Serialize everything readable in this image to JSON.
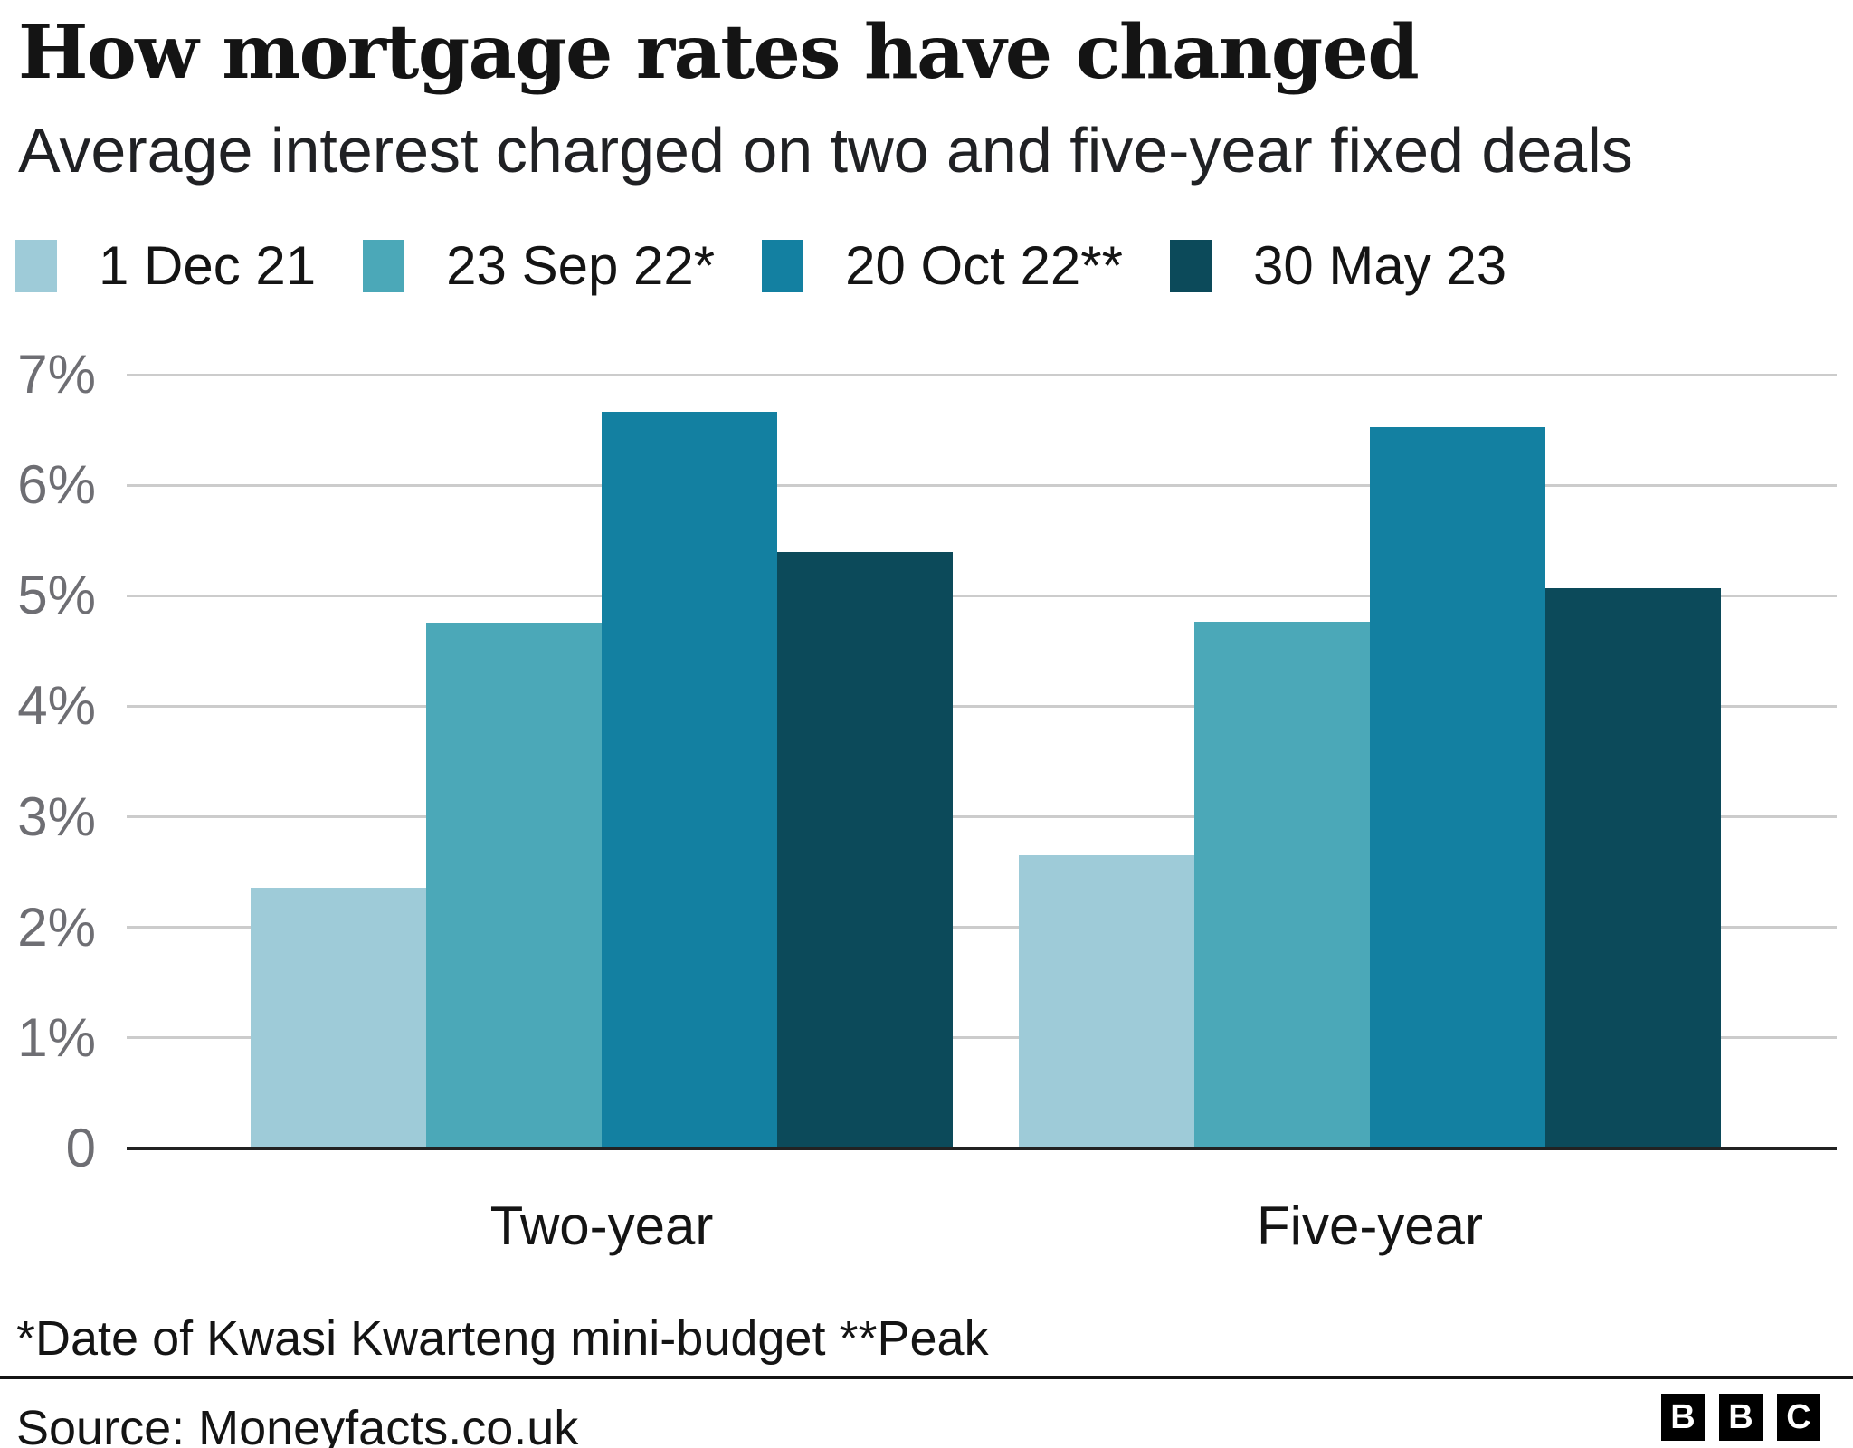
{
  "header": {
    "title": "How mortgage rates have changed",
    "subtitle": "Average interest charged on two and five-year fixed deals"
  },
  "chart_data": {
    "type": "bar",
    "title": "How mortgage rates have changed",
    "subtitle": "Average interest charged on two and five-year fixed deals",
    "categories": [
      "Two-year",
      "Five-year"
    ],
    "series": [
      {
        "name": "1 Dec 21",
        "color": "#9ecbd8",
        "values": [
          2.34,
          2.64
        ]
      },
      {
        "name": "23 Sep 22*",
        "color": "#4ba8b8",
        "values": [
          4.74,
          4.75
        ]
      },
      {
        "name": "20 Oct 22**",
        "color": "#1380a1",
        "values": [
          6.65,
          6.51
        ]
      },
      {
        "name": "30 May 23",
        "color": "#0c4a5a",
        "values": [
          5.38,
          5.05
        ]
      }
    ],
    "unit": "%",
    "xlabel": "",
    "ylabel": "",
    "ylim": [
      0,
      7
    ],
    "yticks": [
      {
        "value": 7,
        "label": "7%"
      },
      {
        "value": 6,
        "label": "6%"
      },
      {
        "value": 5,
        "label": "5%"
      },
      {
        "value": 4,
        "label": "4%"
      },
      {
        "value": 3,
        "label": "3%"
      },
      {
        "value": 2,
        "label": "2%"
      },
      {
        "value": 1,
        "label": "1%"
      },
      {
        "value": 0,
        "label": "0"
      }
    ],
    "grid": true,
    "legend_position": "top"
  },
  "footnote": "*Date of Kwasi Kwarteng mini-budget **Peak",
  "source": "Source: Moneyfacts.co.uk",
  "logo": {
    "letters": [
      "B",
      "B",
      "C"
    ]
  },
  "colors": {
    "background": "#ffffff",
    "text": "#141414",
    "axis_text": "#6e6e73",
    "gridline": "#cccccc",
    "axis_line": "#222222"
  }
}
